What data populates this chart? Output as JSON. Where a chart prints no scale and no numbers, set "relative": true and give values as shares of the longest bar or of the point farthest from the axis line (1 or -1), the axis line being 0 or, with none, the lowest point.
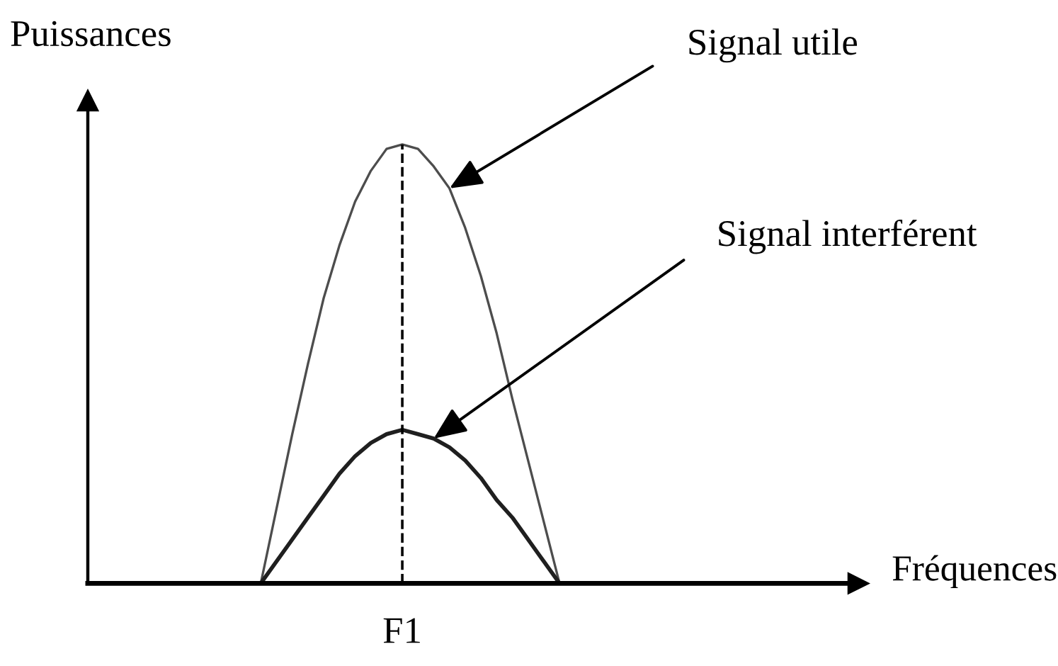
{
  "chart_data": {
    "type": "line",
    "relative": true,
    "ylabel": "Puissances",
    "categories": [
      null,
      null,
      null,
      null,
      null,
      null,
      null,
      null,
      null,
      null,
      null,
      null,
      null,
      null,
      null,
      null,
      null,
      null,
      null,
      null
    ],
    "series": [
      {
        "name": "Signal utile",
        "color": "#4d4d4d",
        "values": [
          0,
          0.17,
          0.34,
          0.5,
          0.65,
          0.77,
          0.87,
          0.94,
          0.99,
          1,
          0.99,
          0.95,
          0.9,
          0.81,
          0.7,
          0.57,
          0.42,
          0.28,
          0.14,
          0
        ]
      },
      {
        "name": "Signal interférent",
        "color": "#1f1f1f",
        "values": [
          0,
          0.05,
          0.1,
          0.15,
          0.2,
          0.25,
          0.29,
          0.32,
          0.34,
          0.35,
          0.34,
          0.33,
          0.31,
          0.28,
          0.24,
          0.19,
          0.15,
          0.1,
          0.05,
          0
        ]
      }
    ],
    "ref_lines": [
      {
        "axis": "x",
        "value": "F1",
        "line_style": "dashed",
        "color": "#000000"
      }
    ],
    "annotations": [
      "Fréquences"
    ],
    "marker": "none",
    "line_style": "solid"
  }
}
